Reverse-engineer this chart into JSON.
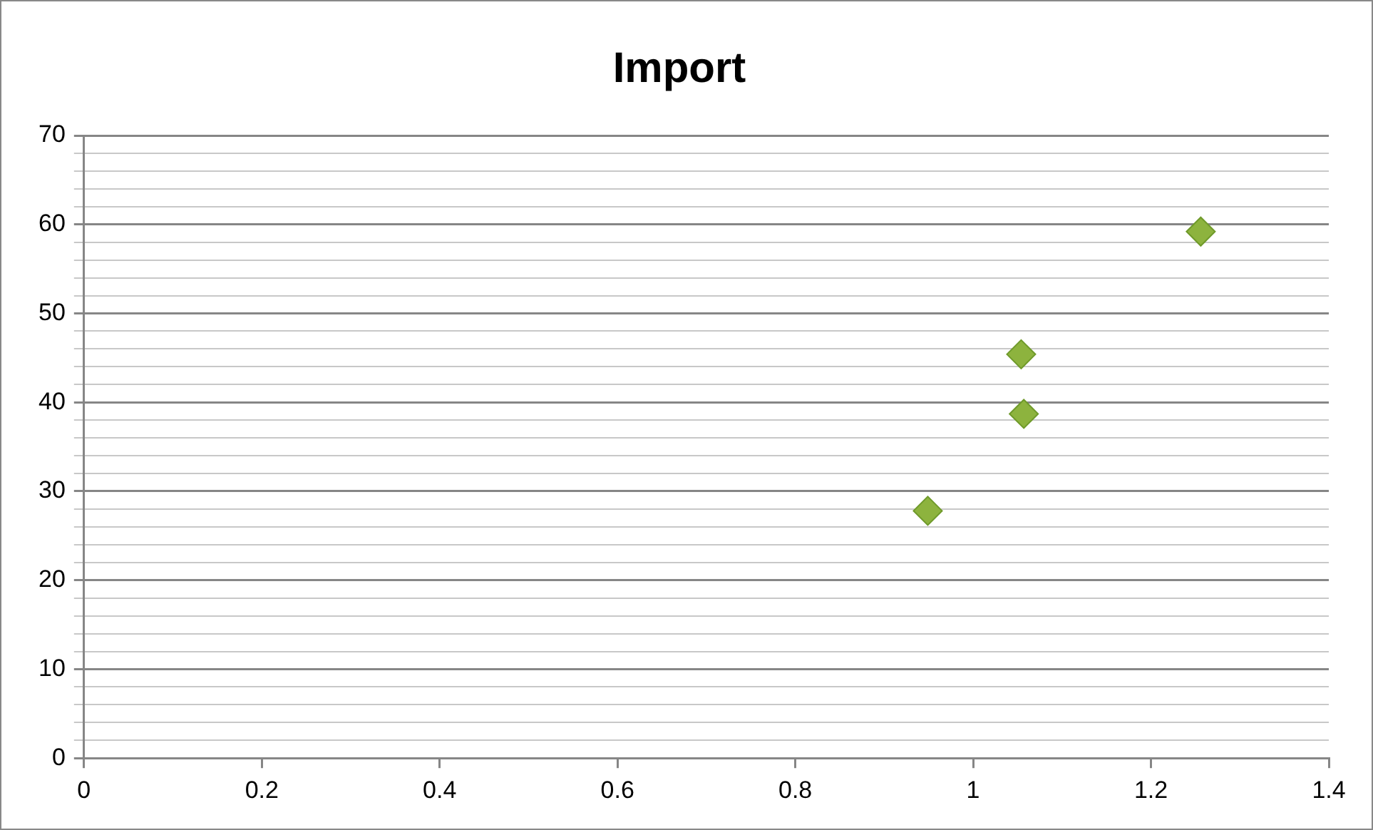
{
  "chart_data": {
    "type": "scatter",
    "title": "Import",
    "x": [
      0.949,
      1.054,
      1.057,
      1.256
    ],
    "series": [
      {
        "color": "#8db33e",
        "values": [
          27.8,
          45.4,
          38.7,
          59.2
        ]
      }
    ],
    "xlim": [
      0,
      1.4
    ],
    "xticks": [
      0,
      {
        "value": 0.2,
        "label": "0.2"
      },
      {
        "value": 0.4,
        "label": "0.4"
      },
      {
        "value": 0.6,
        "label": "0.6"
      },
      {
        "value": 0.8,
        "label": "0.8"
      },
      1,
      {
        "value": 1.2,
        "label": "1.2"
      },
      {
        "value": 1.4,
        "label": "1.4"
      }
    ],
    "ylim": [
      0,
      70
    ],
    "yticks": [
      0,
      {
        "value": 2,
        "label": null
      },
      {
        "value": 4,
        "label": null
      },
      {
        "value": 6,
        "label": null
      },
      {
        "value": 8,
        "label": null
      },
      10,
      {
        "value": 12,
        "label": null
      },
      {
        "value": 14,
        "label": null
      },
      {
        "value": 16,
        "label": null
      },
      {
        "value": 18,
        "label": null
      },
      20,
      {
        "value": 22,
        "label": null
      },
      {
        "value": 24,
        "label": null
      },
      {
        "value": 26,
        "label": null
      },
      {
        "value": 28,
        "label": null
      },
      30,
      {
        "value": 32,
        "label": null
      },
      {
        "value": 34,
        "label": null
      },
      {
        "value": 36,
        "label": null
      },
      {
        "value": 38,
        "label": null
      },
      40,
      {
        "value": 42,
        "label": null
      },
      {
        "value": 44,
        "label": null
      },
      {
        "value": 46,
        "label": null
      },
      {
        "value": 48,
        "label": null
      },
      50,
      {
        "value": 52,
        "label": null
      },
      {
        "value": 54,
        "label": null
      },
      {
        "value": 56,
        "label": null
      },
      {
        "value": 58,
        "label": null
      },
      60,
      {
        "value": 62,
        "label": null
      },
      {
        "value": 64,
        "label": null
      },
      {
        "value": 66,
        "label": null
      },
      {
        "value": 68,
        "label": null
      },
      70
    ],
    "grid": "y",
    "marker": "diamond",
    "legend": false
  }
}
